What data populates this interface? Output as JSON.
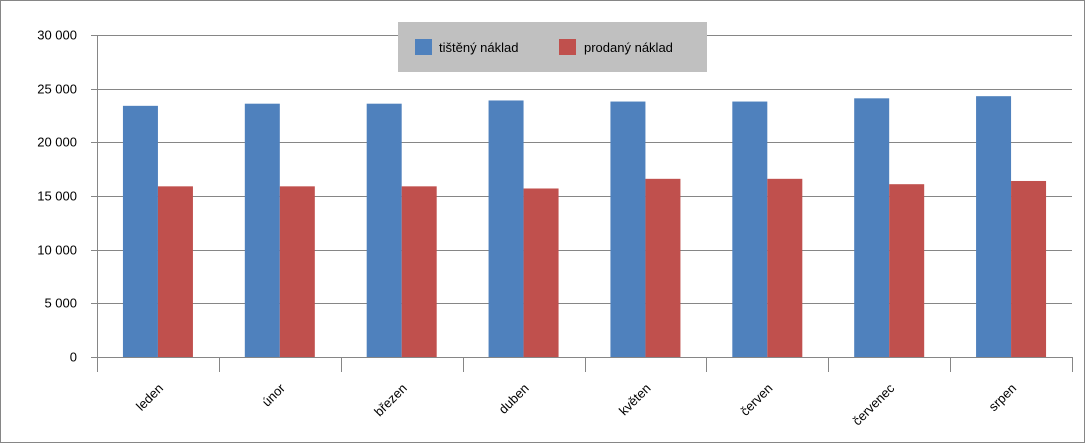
{
  "chart_data": {
    "type": "bar",
    "categories": [
      "leden",
      "únor",
      "březen",
      "duben",
      "květen",
      "červen",
      "červenec",
      "srpen"
    ],
    "series": [
      {
        "name": "tištěný náklad",
        "color": "#4f81bd",
        "values": [
          23400,
          23600,
          23600,
          23900,
          23800,
          23800,
          24100,
          24300
        ]
      },
      {
        "name": "prodaný náklad",
        "color": "#c0504d",
        "values": [
          15900,
          15900,
          15900,
          15700,
          16600,
          16600,
          16100,
          16400
        ]
      }
    ],
    "y_ticks": [
      "0",
      "5 000",
      "10 000",
      "15 000",
      "20 000",
      "25 000",
      "30 000"
    ],
    "ylim": [
      0,
      30000
    ],
    "y_step": 5000,
    "grid": true,
    "legend_position": "top-center",
    "legend_background": "#c0c0c0",
    "grid_color": "#868686"
  }
}
